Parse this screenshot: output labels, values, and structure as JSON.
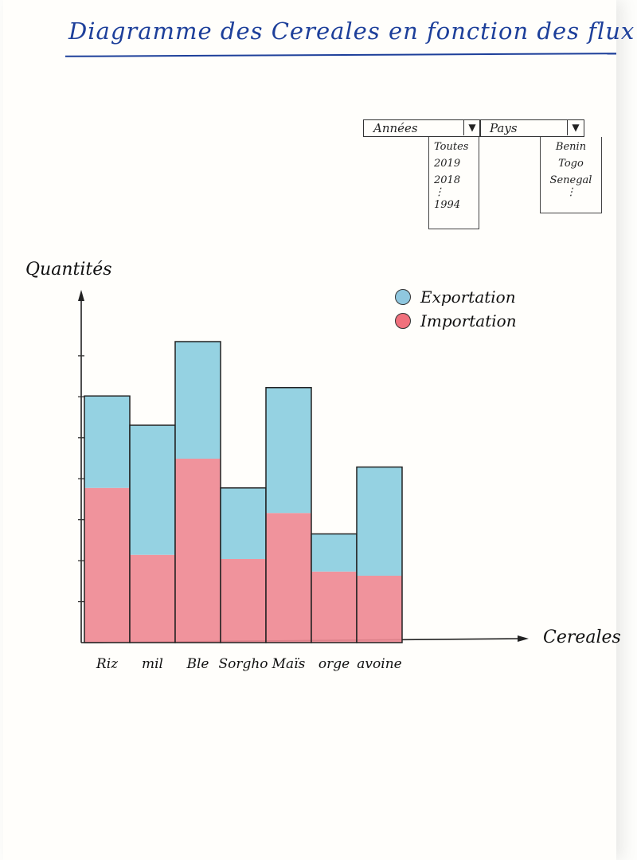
{
  "title": "Diagramme des Cereales en fonction des flux",
  "filters": {
    "year": {
      "label": "Années",
      "options": [
        "Toutes",
        "2019",
        "2018",
        "1994"
      ]
    },
    "country": {
      "label": "Pays",
      "options": [
        "Benin",
        "Togo",
        "Senegal"
      ]
    }
  },
  "colors": {
    "export": "#8fd0e0",
    "import": "#ef8a94",
    "ink": "#1d3f9a"
  },
  "chart_data": {
    "type": "bar",
    "stacked": true,
    "xlabel": "Cereales",
    "ylabel": "Quantités",
    "categories": [
      "Riz",
      "mil",
      "Ble",
      "Sorgho",
      "Maïs",
      "orge",
      "avoine"
    ],
    "series": [
      {
        "name": "Importation",
        "values": [
          3.7,
          2.1,
          4.4,
          2.0,
          3.1,
          1.7,
          1.6
        ]
      },
      {
        "name": "Exportation",
        "values": [
          2.2,
          3.1,
          2.8,
          1.7,
          3.0,
          0.9,
          2.6
        ]
      }
    ],
    "ylim": [
      0,
      8
    ],
    "grid": false,
    "legend": "top-right"
  }
}
